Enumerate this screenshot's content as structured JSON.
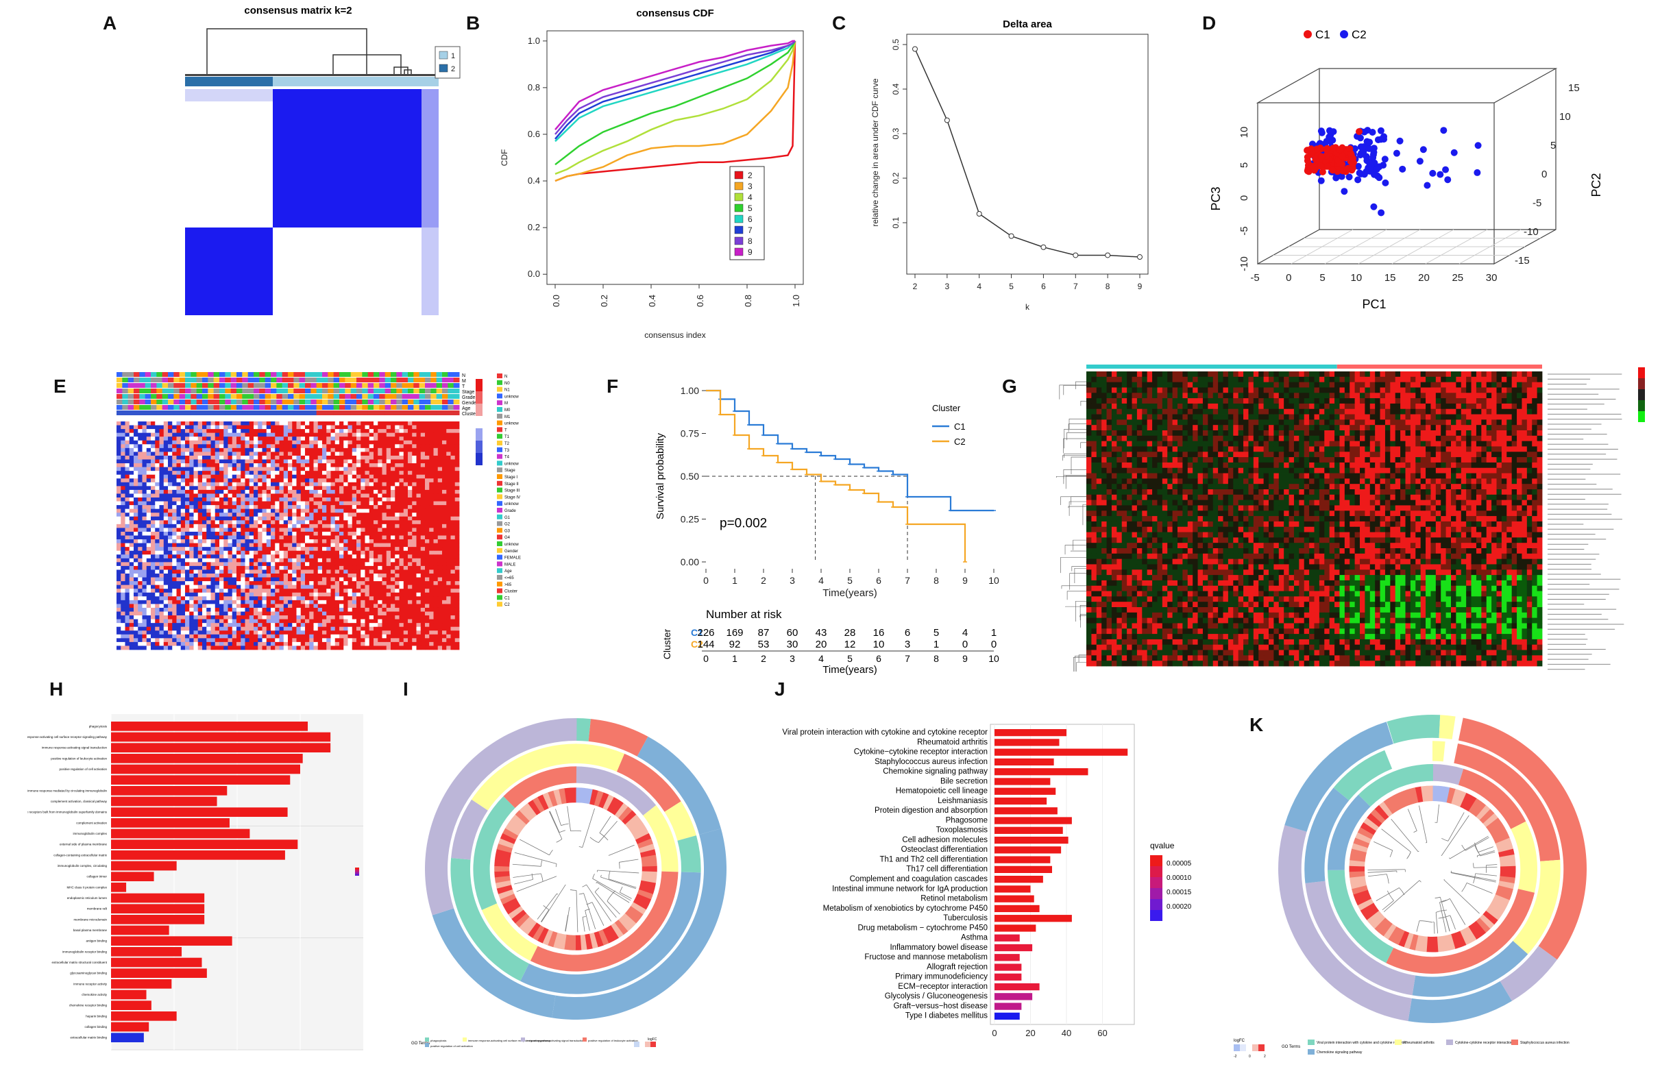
{
  "labels": {
    "A": "A",
    "B": "B",
    "C": "C",
    "D": "D",
    "E": "E",
    "F": "F",
    "G": "G",
    "H": "H",
    "I": "I",
    "J": "J",
    "K": "K"
  },
  "colors": {
    "red": "#ee1111",
    "blue": "#1a1aee",
    "orange": "#f5a623",
    "survBlue": "#2a7bd6",
    "lightblue": "#a6d0e6",
    "darkblue": "#2a6fa8"
  },
  "panelA": {
    "title": "consensus matrix k=2",
    "legend": [
      {
        "label": "1",
        "color": "#a6d0e6"
      },
      {
        "label": "2",
        "color": "#2a6fa8"
      }
    ]
  },
  "chart_data": [
    {
      "panel": "B",
      "type": "line",
      "title": "consensus CDF",
      "xlabel": "consensus index",
      "ylabel": "CDF",
      "xlim": [
        0,
        1
      ],
      "ylim": [
        0,
        1
      ],
      "xticks": [
        "0.0",
        "0.2",
        "0.4",
        "0.6",
        "0.8",
        "1.0"
      ],
      "yticks": [
        "0.0",
        "0.2",
        "0.4",
        "0.6",
        "0.8",
        "1.0"
      ],
      "x": [
        0.0,
        0.05,
        0.1,
        0.2,
        0.3,
        0.4,
        0.5,
        0.6,
        0.7,
        0.8,
        0.9,
        0.97,
        0.99,
        1.0
      ],
      "series": [
        {
          "name": "2",
          "color": "#e8131b",
          "values": [
            0.4,
            0.42,
            0.43,
            0.44,
            0.45,
            0.46,
            0.47,
            0.48,
            0.48,
            0.49,
            0.5,
            0.51,
            0.55,
            1.0
          ]
        },
        {
          "name": "3",
          "color": "#f5a623",
          "values": [
            0.4,
            0.42,
            0.43,
            0.46,
            0.51,
            0.54,
            0.55,
            0.55,
            0.56,
            0.6,
            0.7,
            0.8,
            0.9,
            1.0
          ]
        },
        {
          "name": "4",
          "color": "#b0e03a",
          "values": [
            0.43,
            0.45,
            0.48,
            0.53,
            0.57,
            0.62,
            0.66,
            0.68,
            0.71,
            0.75,
            0.83,
            0.92,
            0.96,
            1.0
          ]
        },
        {
          "name": "5",
          "color": "#2fd12f",
          "values": [
            0.47,
            0.51,
            0.55,
            0.61,
            0.65,
            0.69,
            0.72,
            0.76,
            0.8,
            0.84,
            0.9,
            0.95,
            0.98,
            1.0
          ]
        },
        {
          "name": "6",
          "color": "#21d6c3",
          "values": [
            0.57,
            0.62,
            0.67,
            0.72,
            0.75,
            0.78,
            0.81,
            0.84,
            0.87,
            0.9,
            0.94,
            0.97,
            0.99,
            1.0
          ]
        },
        {
          "name": "7",
          "color": "#1f3fd6",
          "values": [
            0.58,
            0.64,
            0.69,
            0.74,
            0.77,
            0.8,
            0.83,
            0.86,
            0.89,
            0.92,
            0.95,
            0.98,
            0.99,
            1.0
          ]
        },
        {
          "name": "8",
          "color": "#7a3fd6",
          "values": [
            0.6,
            0.66,
            0.71,
            0.76,
            0.79,
            0.82,
            0.85,
            0.88,
            0.91,
            0.94,
            0.96,
            0.98,
            0.99,
            1.0
          ]
        },
        {
          "name": "9",
          "color": "#c71fc7",
          "values": [
            0.62,
            0.68,
            0.74,
            0.79,
            0.82,
            0.85,
            0.88,
            0.91,
            0.93,
            0.96,
            0.98,
            0.99,
            1.0,
            1.0
          ]
        }
      ]
    },
    {
      "panel": "C",
      "type": "line",
      "title": "Delta area",
      "xlabel": "k",
      "ylabel": "relative change in area under CDF curve",
      "x": [
        2,
        3,
        4,
        5,
        6,
        7,
        8,
        9
      ],
      "values": [
        0.49,
        0.33,
        0.12,
        0.07,
        0.045,
        0.027,
        0.027,
        0.023
      ],
      "xlim": [
        2,
        9
      ],
      "ylim": [
        0,
        0.5
      ],
      "yticks": [
        "0.1",
        "0.2",
        "0.3",
        "0.4",
        "0.5"
      ],
      "xticks": [
        "2",
        "3",
        "4",
        "5",
        "6",
        "7",
        "8",
        "9"
      ]
    },
    {
      "panel": "D",
      "type": "scatter",
      "title": "",
      "legend": [
        {
          "label": "C1",
          "color": "#ee1111"
        },
        {
          "label": "C2",
          "color": "#1a1aee"
        }
      ],
      "xlabel": "PC1",
      "ylabel": "PC3",
      "zlabel": "PC2",
      "xticks": [
        "-5",
        "0",
        "5",
        "10",
        "15",
        "20",
        "25",
        "30"
      ],
      "yticks": [
        "-10",
        "-5",
        "0",
        "5",
        "10"
      ],
      "zticks": [
        "-15",
        "-10",
        "-5",
        "0",
        "5",
        "10",
        "15"
      ]
    },
    {
      "panel": "F",
      "type": "line",
      "title": "",
      "xlabel": "Time(years)",
      "ylabel": "Survival probability",
      "legend_title": "Cluster",
      "annotation": "p=0.002",
      "xticks": [
        "0",
        "1",
        "2",
        "3",
        "4",
        "5",
        "6",
        "7",
        "8",
        "9",
        "10"
      ],
      "yticks": [
        "0.00",
        "0.25",
        "0.50",
        "0.75",
        "1.00"
      ],
      "series": [
        {
          "name": "C1",
          "color": "#2a7bd6",
          "x": [
            0,
            0.5,
            1,
            1.5,
            2,
            2.5,
            3,
            3.5,
            4,
            4.5,
            5,
            5.5,
            6,
            6.5,
            7,
            7.5,
            8,
            8.5,
            9,
            9.5,
            10
          ],
          "values": [
            1.0,
            0.95,
            0.88,
            0.8,
            0.74,
            0.69,
            0.66,
            0.64,
            0.62,
            0.6,
            0.57,
            0.55,
            0.53,
            0.51,
            0.38,
            0.38,
            0.38,
            0.3,
            0.3,
            0.3,
            0.3
          ]
        },
        {
          "name": "C2",
          "color": "#f5a623",
          "x": [
            0,
            0.5,
            1,
            1.5,
            2,
            2.5,
            3,
            3.5,
            4,
            4.5,
            5,
            5.5,
            6,
            6.5,
            7,
            7.5,
            8,
            8.5,
            9
          ],
          "values": [
            1.0,
            0.86,
            0.74,
            0.66,
            0.62,
            0.58,
            0.54,
            0.51,
            0.47,
            0.45,
            0.42,
            0.4,
            0.35,
            0.32,
            0.22,
            0.22,
            0.22,
            0.22,
            0.0
          ]
        }
      ],
      "risk_title": "Number at risk",
      "risk_axis": "Cluster",
      "risk_xlabel": "Time(years)",
      "risk": [
        {
          "name": "C1",
          "values": [
            "226",
            "169",
            "87",
            "60",
            "43",
            "28",
            "16",
            "6",
            "5",
            "4",
            "1"
          ]
        },
        {
          "name": "C2",
          "values": [
            "144",
            "92",
            "53",
            "30",
            "20",
            "12",
            "10",
            "3",
            "1",
            "0",
            "0"
          ]
        }
      ]
    },
    {
      "panel": "H",
      "type": "bar",
      "orientation": "horizontal",
      "categories": [
        "phagocytosis",
        "immune response-activating cell surface receptor signaling pathway",
        "immune response-activating signal transduction",
        "positive regulation of leukocyte activation",
        "positive regulation of cell activation",
        "",
        "humoral immune response mediated by circulating immunoglobulin",
        "complement activation, classical pathway",
        "adaptive immune response based on somatic recombination of immune receptors built from immunoglobulin superfamily domains",
        "complement activation",
        "immunoglobulin complex",
        "external side of plasma membrane",
        "collagen-containing extracellular matrix",
        "immunoglobulin complex, circulating",
        "collagen trimer",
        "MHC class II protein complex",
        "endoplasmic reticulum lumen",
        "membrane raft",
        "membrane microdomain",
        "basal plasma membrane",
        "antigen binding",
        "immunoglobulin receptor binding",
        "extracellular matrix structural constituent",
        "glycosaminoglycan binding",
        "immune receptor activity",
        "chemokine activity",
        "chemokine receptor binding",
        "heparin binding",
        "collagen binding",
        "extracellular matrix binding"
      ],
      "values": [
        78,
        87,
        87,
        76,
        75,
        71,
        46,
        42,
        70,
        47,
        55,
        74,
        69,
        26,
        17,
        6,
        37,
        37,
        37,
        23,
        48,
        28,
        36,
        38,
        24,
        14,
        16,
        26,
        15,
        13
      ]
    },
    {
      "panel": "J",
      "type": "bar",
      "orientation": "horizontal",
      "legend_title": "qvalue",
      "legend_ticks": [
        "0.00005",
        "0.00010",
        "0.00015",
        "0.00020"
      ],
      "xticks": [
        "0",
        "20",
        "40",
        "60"
      ],
      "categories": [
        "Viral protein interaction with cytokine and cytokine receptor",
        "Rheumatoid arthritis",
        "Cytokine−cytokine receptor interaction",
        "Staphylococcus aureus infection",
        "Chemokine signaling pathway",
        "Bile secretion",
        "Hematopoietic cell lineage",
        "Leishmaniasis",
        "Protein digestion and absorption",
        "Phagosome",
        "Toxoplasmosis",
        "Cell adhesion molecules",
        "Osteoclast differentiation",
        "Th1 and Th2 cell differentiation",
        "Th17 cell differentiation",
        "Complement and coagulation cascades",
        "Intestinal immune network for IgA production",
        "Retinol metabolism",
        "Metabolism of xenobiotics by cytochrome P450",
        "Tuberculosis",
        "Drug metabolism − cytochrome P450",
        "Asthma",
        "Inflammatory bowel disease",
        "Fructose and mannose metabolism",
        "Allograft rejection",
        "Primary immunodeficiency",
        "ECM−receptor interaction",
        "Glycolysis / Gluconeogenesis",
        "Graft−versus−host disease",
        "Type I diabetes mellitus"
      ],
      "values": [
        40,
        36,
        74,
        33,
        52,
        31,
        34,
        29,
        35,
        43,
        38,
        41,
        37,
        31,
        32,
        27,
        20,
        22,
        25,
        43,
        23,
        14,
        21,
        14,
        15,
        15,
        25,
        21,
        15,
        14
      ]
    }
  ],
  "panelE": {
    "annot_rows": [
      "N",
      "M",
      "T",
      "Stage",
      "Grade",
      "Gender",
      "Age",
      "Cluster"
    ],
    "legend": [
      "N",
      "N0",
      "N1",
      "unknow",
      "M",
      "M0",
      "M1",
      "unknow",
      "T",
      "T1",
      "T2",
      "T3",
      "T4",
      "unknow",
      "Stage",
      "Stage I",
      "Stage II",
      "Stage III",
      "Stage IV",
      "unknow",
      "Grade",
      "G1",
      "G2",
      "G3",
      "G4",
      "unknow",
      "Gender",
      "FEMALE",
      "MALE",
      "Age",
      "<=65",
      ">65",
      "Cluster",
      "C1",
      "C2"
    ]
  },
  "panelG": {
    "note": "pathway heatmap"
  },
  "panelI": {
    "go_title": "GO Terms",
    "legend": [
      "phagocytosis",
      "positive regulation of cell activation",
      "immune response-activating cell surface receptor signaling pathway",
      "immune response-activating signal transduction",
      "positive regulation of leukocyte activation"
    ],
    "fc_title": "logFC"
  },
  "panelK": {
    "go_title": "GO Terms",
    "fc_title": "logFC",
    "fc_ticks": [
      "-2",
      "0",
      "2"
    ],
    "legend": [
      "Viral protein interaction with cytokine and cytokine receptor",
      "Rheumatoid arthritis",
      "Cytokine-cytokine receptor interaction",
      "Staphylococcus aureus infection",
      "Chemokine signaling pathway"
    ]
  }
}
